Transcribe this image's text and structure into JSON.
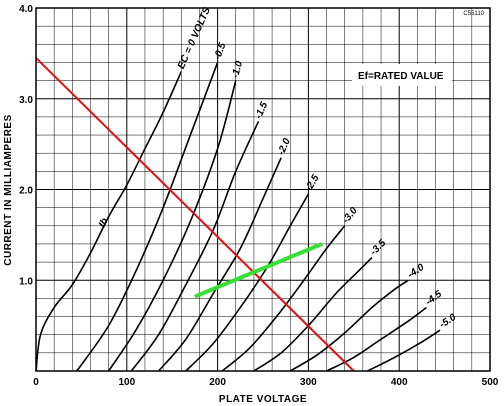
{
  "chart_data": {
    "type": "line",
    "title": "",
    "code": "C55110",
    "xlabel": "PLATE VOLTAGE",
    "ylabel": "CURRENT IN MILLIAMPERES",
    "xlim": [
      0,
      500
    ],
    "ylim": [
      0,
      4.0
    ],
    "x_ticks": [
      0,
      100,
      200,
      300,
      400,
      500
    ],
    "x_tick_labels": [
      "0",
      "100",
      "200",
      "300",
      "400",
      "500"
    ],
    "y_ticks": [
      1.0,
      2.0,
      3.0,
      4.0
    ],
    "y_tick_labels": [
      "1.0",
      "2.0",
      "3.0",
      "4.0"
    ],
    "grid": true,
    "grid_minor_x": 20,
    "grid_minor_y": 0.2,
    "annotation": "Ef=RATED VALUE",
    "curve_family_label": "Ib",
    "series": [
      {
        "name": "EC = 0 VOLTS",
        "label": "EC = 0 VOLTS",
        "x": [
          0,
          5,
          20,
          40,
          60,
          80,
          100,
          120,
          140,
          160
        ],
        "y": [
          0,
          0.4,
          0.7,
          0.95,
          1.3,
          1.7,
          2.05,
          2.45,
          2.85,
          3.3
        ]
      },
      {
        "name": "-0.5",
        "label": "-0.5",
        "x": [
          45,
          80,
          110,
          140,
          170,
          200
        ],
        "y": [
          0,
          0.5,
          1.1,
          1.8,
          2.6,
          3.4
        ]
      },
      {
        "name": "-1.0",
        "label": "-1.0",
        "x": [
          80,
          110,
          140,
          170,
          200,
          220
        ],
        "y": [
          0,
          0.45,
          1.0,
          1.65,
          2.45,
          3.2
        ]
      },
      {
        "name": "-1.5",
        "label": "-1.5",
        "x": [
          105,
          135,
          165,
          195,
          220,
          245
        ],
        "y": [
          0,
          0.4,
          0.95,
          1.55,
          2.2,
          2.75
        ]
      },
      {
        "name": "-2.0",
        "label": "-2.0",
        "x": [
          135,
          165,
          195,
          225,
          250,
          270
        ],
        "y": [
          0,
          0.35,
          0.85,
          1.35,
          1.9,
          2.35
        ]
      },
      {
        "name": "-2.5",
        "label": "-2.5",
        "x": [
          165,
          195,
          225,
          255,
          280,
          300
        ],
        "y": [
          0,
          0.3,
          0.7,
          1.15,
          1.6,
          1.95
        ]
      },
      {
        "name": "-3.0",
        "label": "-3.0",
        "x": [
          205,
          235,
          265,
          295,
          320,
          340
        ],
        "y": [
          0,
          0.25,
          0.6,
          1.0,
          1.35,
          1.6
        ]
      },
      {
        "name": "-3.5",
        "label": "-3.5",
        "x": [
          240,
          270,
          300,
          330,
          355,
          370
        ],
        "y": [
          0,
          0.2,
          0.5,
          0.85,
          1.1,
          1.25
        ]
      },
      {
        "name": "-4.0",
        "label": "-4.0",
        "x": [
          280,
          310,
          340,
          370,
          395,
          410
        ],
        "y": [
          0,
          0.18,
          0.42,
          0.7,
          0.9,
          1.0
        ]
      },
      {
        "name": "-4.5",
        "label": "-4.5",
        "x": [
          320,
          350,
          380,
          410,
          430
        ],
        "y": [
          0,
          0.15,
          0.35,
          0.55,
          0.7
        ]
      },
      {
        "name": "-5.0",
        "label": "-5.0",
        "x": [
          365,
          395,
          425,
          445
        ],
        "y": [
          0,
          0.15,
          0.32,
          0.45
        ]
      }
    ],
    "load_line": {
      "color": "#e01010",
      "x": [
        0,
        350
      ],
      "y": [
        3.45,
        0
      ]
    },
    "operating_line": {
      "color": "#33e033",
      "x": [
        175,
        315
      ],
      "y": [
        0.82,
        1.4
      ]
    }
  }
}
